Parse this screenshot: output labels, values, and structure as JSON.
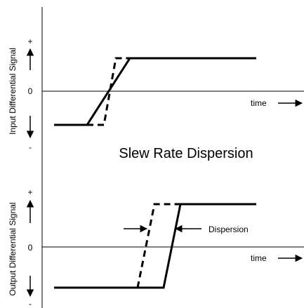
{
  "top_panel": {
    "axis_label": "Input Differential Signal",
    "plus": "+",
    "zero": "0",
    "minus": "-",
    "time_label": "time"
  },
  "middle_title": "Slew Rate Dispersion",
  "bottom_panel": {
    "axis_label": "Output Differential Signal",
    "plus": "+",
    "zero": "0",
    "minus": "-",
    "time_label": "time",
    "dispersion_label": "Dispersion"
  },
  "colors": {
    "ink": "#000000",
    "background": "#ffffff"
  }
}
